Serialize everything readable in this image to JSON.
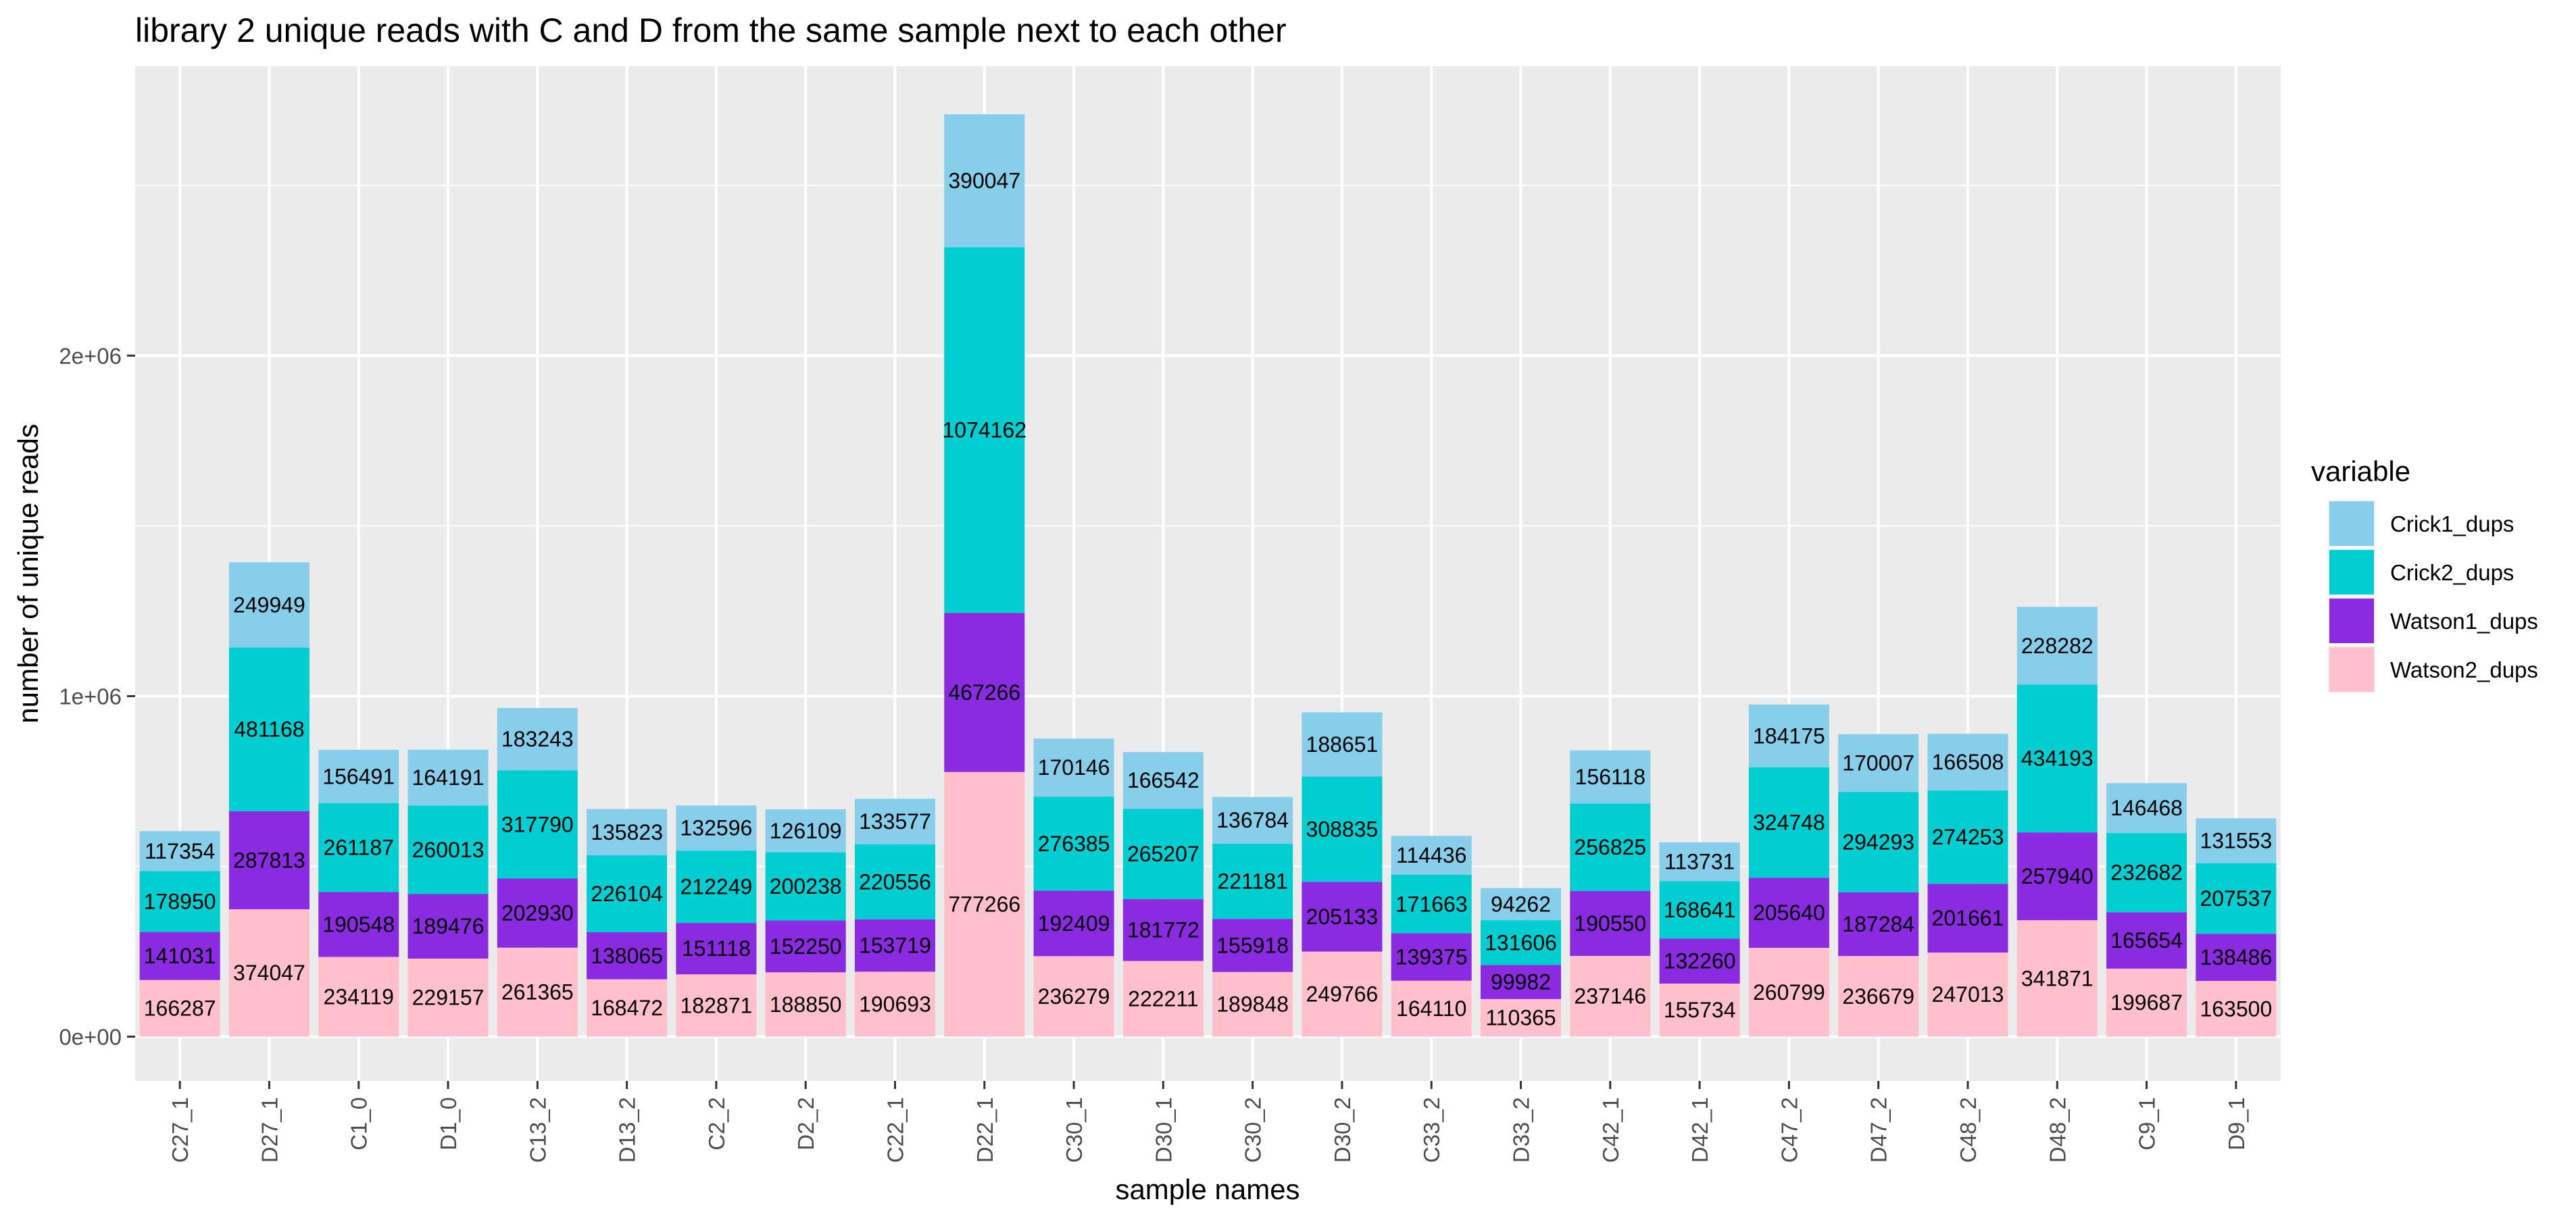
{
  "chart_data": {
    "type": "bar",
    "stacked": true,
    "title": "library 2 unique reads with C and D from the same sample next to each other",
    "xlabel": "sample names",
    "ylabel": "number of unique reads",
    "ylim": [
      -130000,
      2850000
    ],
    "yticks": [
      0,
      1000000,
      2000000
    ],
    "ytick_labels": [
      "0e+00",
      "1e+06",
      "2e+06"
    ],
    "grid": true,
    "legend": {
      "title": "variable",
      "position": "right"
    },
    "categories": [
      "C27_1",
      "D27_1",
      "C1_0",
      "D1_0",
      "C13_2",
      "D13_2",
      "C2_2",
      "D2_2",
      "C22_1",
      "D22_1",
      "C30_1",
      "D30_1",
      "C30_2",
      "D30_2",
      "C33_2",
      "D33_2",
      "C42_1",
      "D42_1",
      "C47_2",
      "D47_2",
      "C48_2",
      "D48_2",
      "C9_1",
      "D9_1"
    ],
    "series": [
      {
        "name": "Crick1_dups",
        "color": "#87ceeb",
        "values": [
          117354,
          249949,
          156491,
          164191,
          183243,
          135823,
          132596,
          126109,
          133577,
          390047,
          170146,
          166542,
          136784,
          188651,
          114436,
          94262,
          156118,
          113731,
          184175,
          170007,
          166508,
          228282,
          146468,
          131553
        ]
      },
      {
        "name": "Crick2_dups",
        "color": "#00ced1",
        "values": [
          178950,
          481168,
          261187,
          260013,
          317790,
          226104,
          212249,
          200238,
          220556,
          1074162,
          276385,
          265207,
          221181,
          308835,
          171663,
          131606,
          256825,
          168641,
          324748,
          294293,
          274253,
          434193,
          232682,
          207537
        ]
      },
      {
        "name": "Watson1_dups",
        "color": "#8a2be2",
        "values": [
          141031,
          287813,
          190548,
          189476,
          202930,
          138065,
          151118,
          152250,
          153719,
          467266,
          192409,
          181772,
          155918,
          205133,
          139375,
          99982,
          190550,
          132260,
          205640,
          187284,
          201661,
          257940,
          165654,
          138486
        ]
      },
      {
        "name": "Watson2_dups",
        "color": "#ffc0cb",
        "values": [
          166287,
          374047,
          234119,
          229157,
          261365,
          168472,
          182871,
          188850,
          190693,
          777266,
          236279,
          222211,
          189848,
          249766,
          164110,
          110365,
          237146,
          155734,
          260799,
          236679,
          247013,
          341871,
          199687,
          163500
        ]
      }
    ]
  }
}
